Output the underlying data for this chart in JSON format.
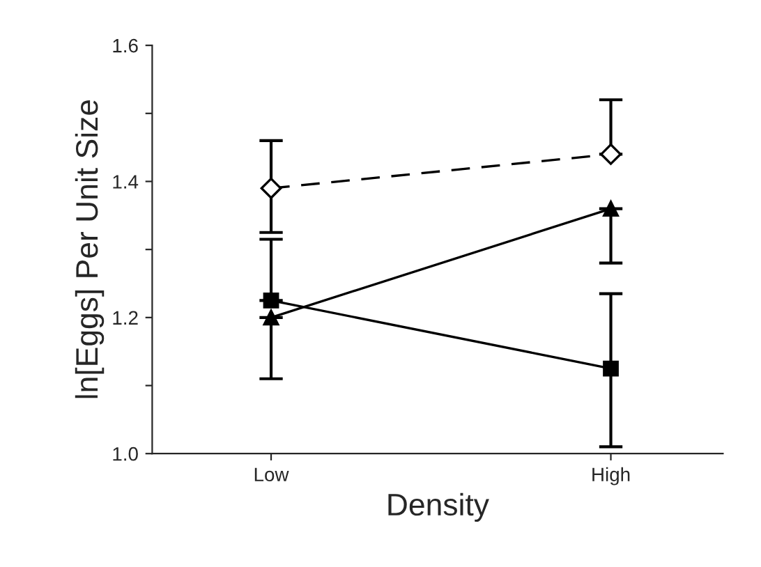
{
  "chart_data": {
    "type": "line",
    "xlabel": "Density",
    "ylabel": "ln[Eggs] Per Unit Size",
    "categories": [
      "Low",
      "High"
    ],
    "series": [
      {
        "color": "#000000",
        "marker": "diamond",
        "line_style": "dashed",
        "values": [
          1.39,
          1.44
        ],
        "errors": [
          [
            1.325,
            1.46
          ],
          [
            1.44,
            1.52
          ]
        ]
      },
      {
        "color": "#000000",
        "marker": "triangle",
        "line_style": "solid",
        "values": [
          1.2,
          1.36
        ],
        "errors": [
          [
            1.11,
            1.2
          ],
          [
            1.28,
            1.36
          ]
        ]
      },
      {
        "color": "#000000",
        "marker": "square",
        "line_style": "solid",
        "values": [
          1.225,
          1.125
        ],
        "errors": [
          [
            1.225,
            1.315
          ],
          [
            1.01,
            1.235
          ]
        ]
      }
    ],
    "ylim": [
      1.0,
      1.6
    ],
    "yticks": [
      {
        "value": 1.0,
        "label": "1.0"
      },
      {
        "value": 1.1,
        "label": null
      },
      1.2,
      {
        "value": 1.3,
        "label": null
      },
      1.4,
      {
        "value": 1.5,
        "label": null
      },
      1.6
    ],
    "grid": false
  }
}
